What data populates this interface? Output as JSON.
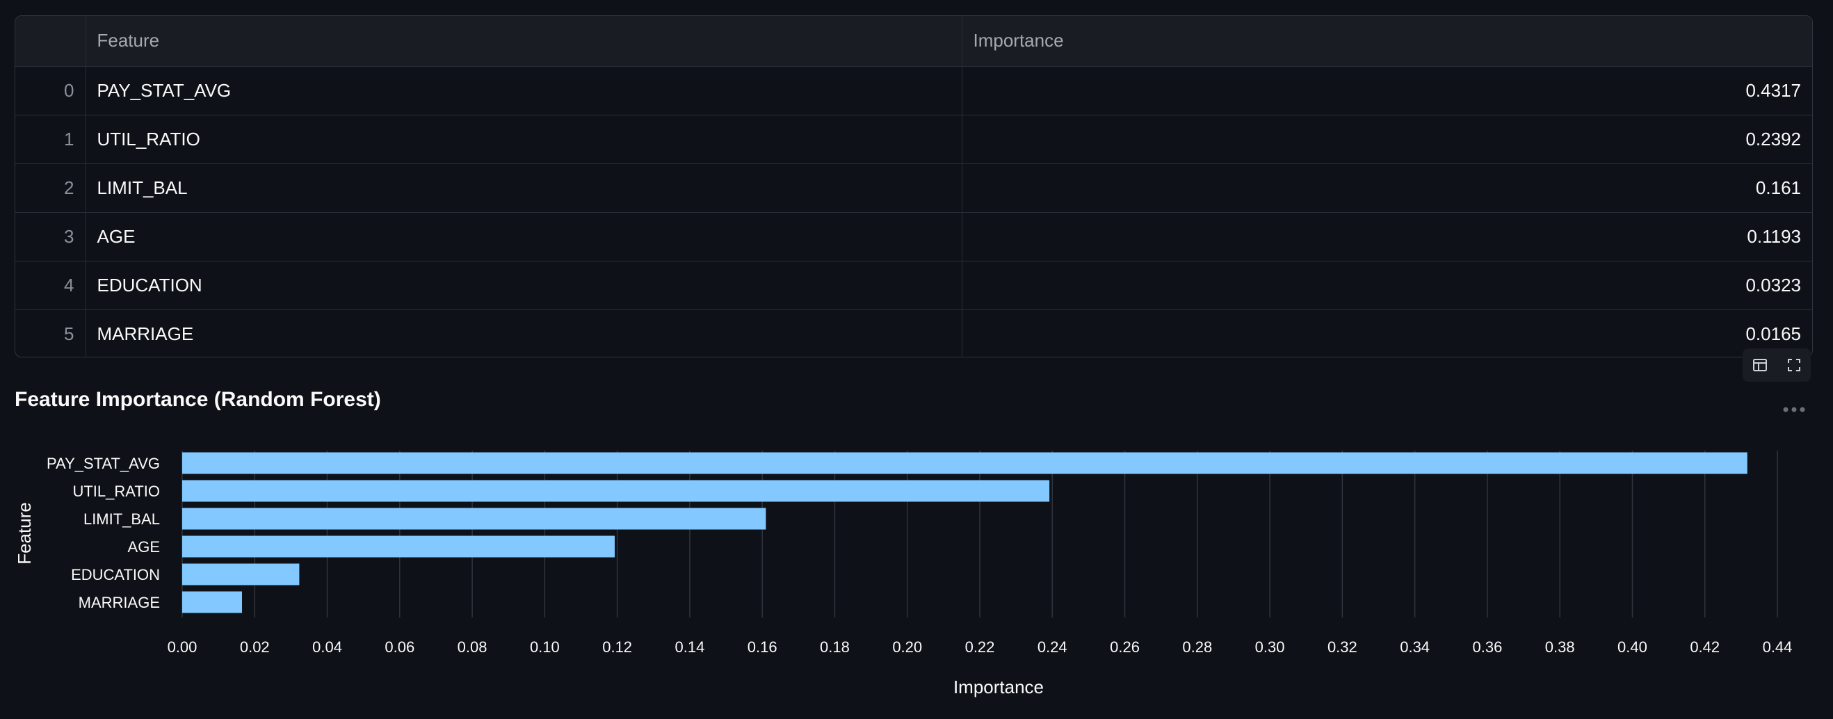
{
  "table": {
    "columns": {
      "index": "",
      "feature": "Feature",
      "importance": "Importance"
    },
    "rows": [
      {
        "index": "0",
        "feature": "PAY_STAT_AVG",
        "importance": "0.4317"
      },
      {
        "index": "1",
        "feature": "UTIL_RATIO",
        "importance": "0.2392"
      },
      {
        "index": "2",
        "feature": "LIMIT_BAL",
        "importance": "0.161"
      },
      {
        "index": "3",
        "feature": "AGE",
        "importance": "0.1193"
      },
      {
        "index": "4",
        "feature": "EDUCATION",
        "importance": "0.0323"
      },
      {
        "index": "5",
        "feature": "MARRIAGE",
        "importance": "0.0165"
      }
    ]
  },
  "toolbar": {
    "icons": [
      "table-layout-icon",
      "fullscreen-icon"
    ]
  },
  "more_icon": "more-options-icon",
  "colors": {
    "background": "#0e1117",
    "bar": "#83c9ff",
    "grid": "#31343c",
    "text": "#fafafa"
  },
  "chart_data": {
    "type": "bar",
    "orientation": "horizontal",
    "title": "Feature Importance (Random Forest)",
    "xlabel": "Importance",
    "ylabel": "Feature",
    "categories": [
      "PAY_STAT_AVG",
      "UTIL_RATIO",
      "LIMIT_BAL",
      "AGE",
      "EDUCATION",
      "MARRIAGE"
    ],
    "values": [
      0.4317,
      0.2392,
      0.161,
      0.1193,
      0.0323,
      0.0165
    ],
    "xlim": [
      0,
      0.44
    ],
    "xticks": [
      "0.00",
      "0.02",
      "0.04",
      "0.06",
      "0.08",
      "0.10",
      "0.12",
      "0.14",
      "0.16",
      "0.18",
      "0.20",
      "0.22",
      "0.24",
      "0.26",
      "0.28",
      "0.30",
      "0.32",
      "0.34",
      "0.36",
      "0.38",
      "0.40",
      "0.42",
      "0.44"
    ],
    "grid": "vertical"
  }
}
